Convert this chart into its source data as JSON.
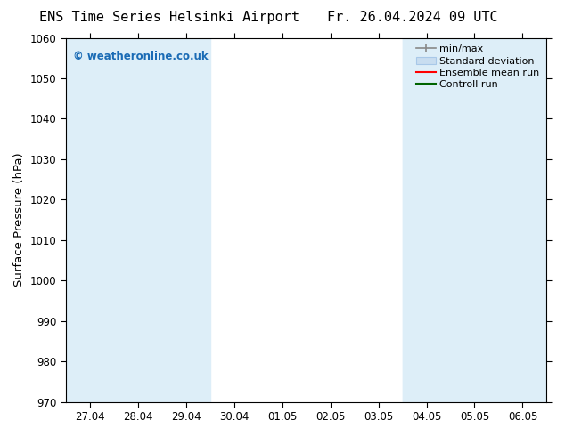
{
  "title_left": "ENS Time Series Helsinki Airport",
  "title_right": "Fr. 26.04.2024 09 UTC",
  "ylabel": "Surface Pressure (hPa)",
  "ylim": [
    970,
    1060
  ],
  "yticks": [
    970,
    980,
    990,
    1000,
    1010,
    1020,
    1030,
    1040,
    1050,
    1060
  ],
  "xlabels": [
    "27.04",
    "28.04",
    "29.04",
    "30.04",
    "01.05",
    "02.05",
    "03.05",
    "04.05",
    "05.05",
    "06.05"
  ],
  "x_positions": [
    0,
    1,
    2,
    3,
    4,
    5,
    6,
    7,
    8,
    9
  ],
  "shaded_color": "#ddeef8",
  "watermark": "© weatheronline.co.uk",
  "watermark_color": "#1a6bb5",
  "background_color": "#ffffff",
  "plot_background": "#ffffff",
  "tick_label_fontsize": 8.5,
  "axis_label_fontsize": 9.5,
  "title_fontsize": 11,
  "legend_fontsize": 8
}
